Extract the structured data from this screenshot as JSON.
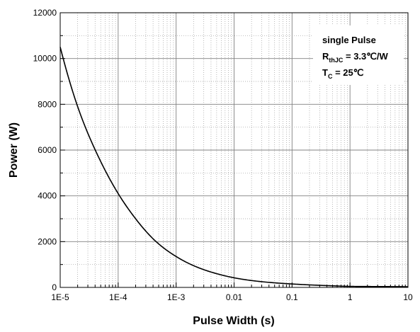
{
  "chart_data": {
    "type": "line",
    "title": "",
    "xlabel": "Pulse Width (s)",
    "ylabel": "Power (W)",
    "x_scale": "log",
    "xlim": [
      1e-05,
      10
    ],
    "ylim": [
      0,
      12000
    ],
    "grid": true,
    "x_tick_values": [
      1e-05,
      0.0001,
      0.001,
      0.01,
      0.1,
      1,
      10
    ],
    "x_tick_labels": [
      "1E-5",
      "1E-4",
      "1E-3",
      "0.01",
      "0.1",
      "1",
      "10"
    ],
    "y_tick_values": [
      0,
      2000,
      4000,
      6000,
      8000,
      10000,
      12000
    ],
    "y_tick_labels": [
      "0",
      "2000",
      "4000",
      "6000",
      "8000",
      "10000",
      "12000"
    ],
    "series": [
      {
        "color": "#000000",
        "x": [
          1e-05,
          2e-05,
          5e-05,
          0.0001,
          0.0002,
          0.0005,
          0.001,
          0.002,
          0.005,
          0.01,
          0.02,
          0.05,
          0.1,
          0.2,
          0.5,
          1,
          2,
          5,
          10
        ],
        "y": [
          10500,
          7900,
          5500,
          4100,
          3000,
          1900,
          1350,
          950,
          600,
          420,
          300,
          200,
          150,
          110,
          70,
          45,
          40,
          35,
          30
        ]
      }
    ],
    "annotation": {
      "line1": "single Pulse",
      "line2_main": "R",
      "line2_sub": "thJC",
      "line2_rest": " = 3.3℃/W",
      "line3_main": "T",
      "line3_sub": "C",
      "line3_rest": " = 25℃"
    }
  }
}
